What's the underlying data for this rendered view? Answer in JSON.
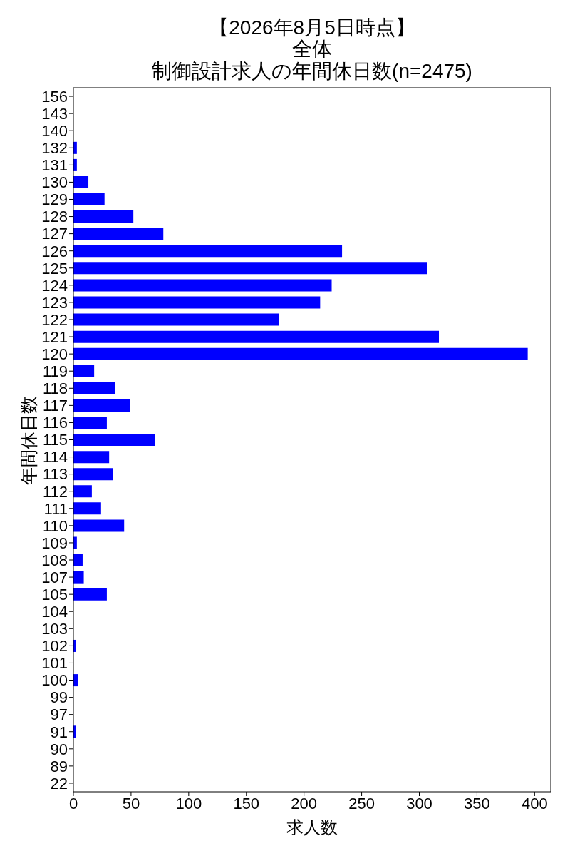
{
  "chart_data": {
    "type": "bar",
    "orientation": "horizontal",
    "annotations": [
      "【2026年8月5日時点】"
    ],
    "subtitle": "全体",
    "title": "制御設計求人の年間休日数(n=2475)",
    "xlabel": "求人数",
    "ylabel": "年間休日数",
    "categories": [
      "156",
      "143",
      "140",
      "132",
      "131",
      "130",
      "129",
      "128",
      "127",
      "126",
      "125",
      "124",
      "123",
      "122",
      "121",
      "120",
      "119",
      "118",
      "117",
      "116",
      "115",
      "114",
      "113",
      "112",
      "111",
      "110",
      "109",
      "108",
      "107",
      "105",
      "104",
      "103",
      "102",
      "101",
      "100",
      "99",
      "97",
      "91",
      "90",
      "89",
      "22"
    ],
    "values": [
      0,
      0,
      0,
      3,
      3,
      13,
      27,
      52,
      78,
      233,
      307,
      224,
      214,
      178,
      317,
      394,
      18,
      36,
      49,
      29,
      71,
      31,
      34,
      16,
      24,
      44,
      3,
      8,
      9,
      29,
      0,
      0,
      2,
      0,
      4,
      0,
      0,
      2,
      0,
      0,
      0
    ],
    "color": "#0000ff",
    "xlim": [
      0,
      414
    ],
    "xticks": [
      0,
      50,
      100,
      150,
      200,
      250,
      300,
      350,
      400
    ]
  }
}
